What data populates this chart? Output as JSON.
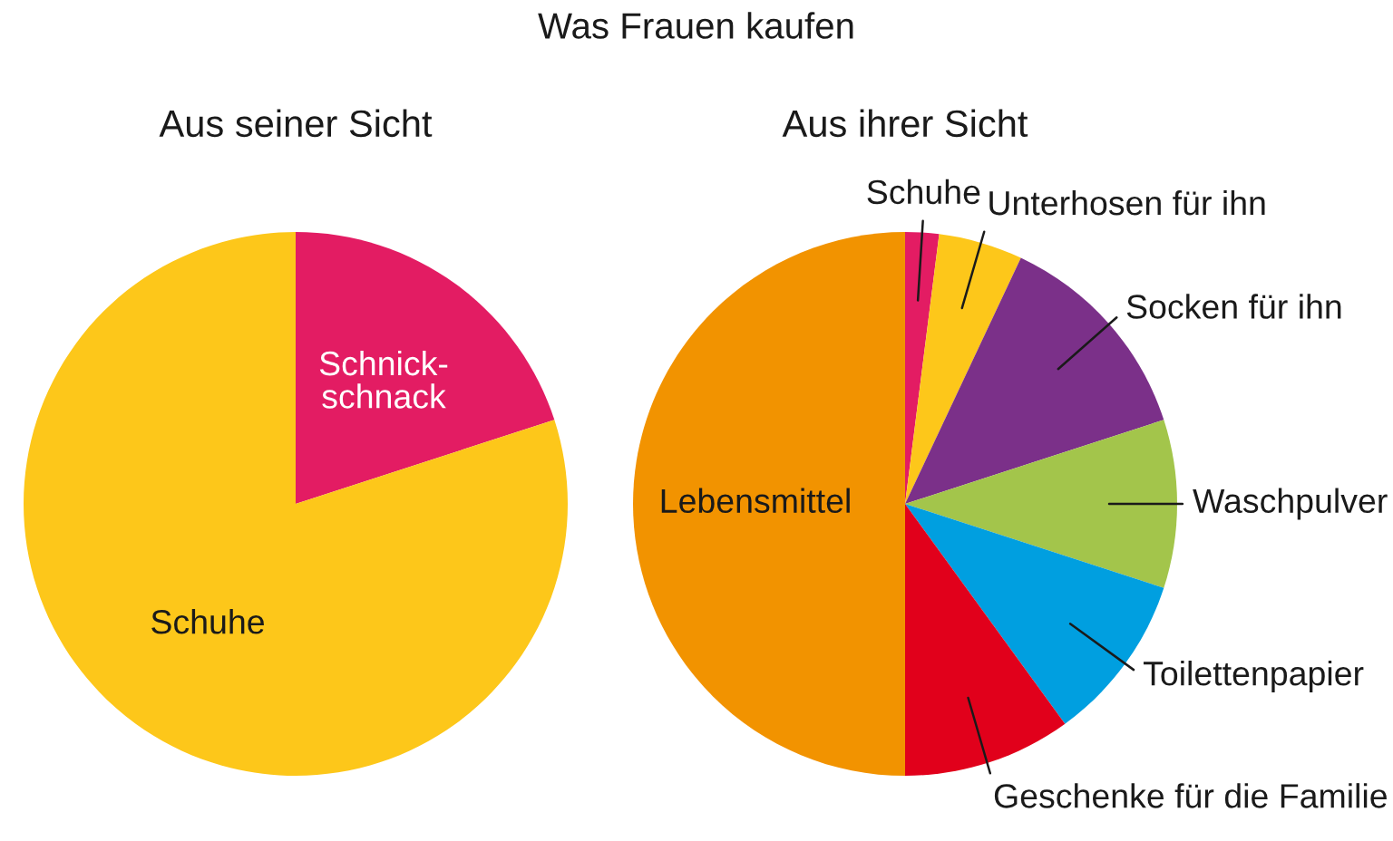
{
  "chart_data": [
    {
      "type": "pie",
      "title": "Aus seiner Sicht",
      "annotations": [
        "Was Frauen kaufen"
      ],
      "categories": [
        "Schnick-\nschnack",
        "Schuhe"
      ],
      "values": [
        20,
        80
      ],
      "colors": [
        "#e31c63",
        "#fdc71a"
      ]
    },
    {
      "type": "pie",
      "title": "Aus ihrer Sicht",
      "categories": [
        "Schuhe",
        "Unterhosen für ihn",
        "Socken für ihn",
        "Waschpulver",
        "Toilettenpapier",
        "Geschenke für die Familie",
        "Lebensmittel"
      ],
      "values": [
        2,
        5,
        13,
        10,
        10,
        10,
        50
      ],
      "colors": [
        "#e31c63",
        "#fdc71a",
        "#7b3089",
        "#a3c54b",
        "#009fe0",
        "#e1001b",
        "#f29300"
      ]
    }
  ]
}
